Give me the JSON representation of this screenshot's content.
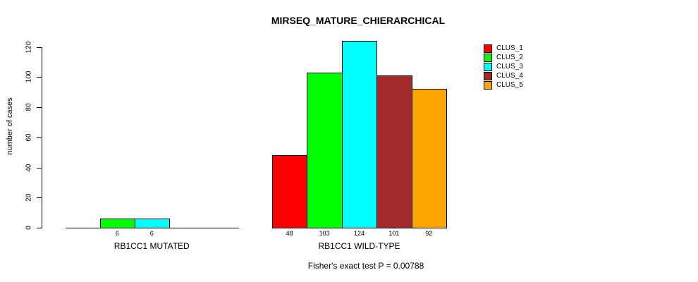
{
  "chart_data": {
    "type": "bar",
    "title": "MIRSEQ_MATURE_CHIERARCHICAL",
    "ylabel": "number of cases",
    "xlabel": "",
    "sub": "Fisher's exact test P = 0.00788",
    "ylim": [
      0,
      120
    ],
    "yticks": [
      0,
      20,
      40,
      60,
      80,
      100,
      120
    ],
    "grid": false,
    "clusters": [
      "CLUS_1",
      "CLUS_2",
      "CLUS_3",
      "CLUS_4",
      "CLUS_5"
    ],
    "colors": [
      "#FF0000",
      "#00FF00",
      "#00FFFF",
      "#A52A2A",
      "#FFA500"
    ],
    "groups": [
      {
        "label": "RB1CC1 MUTATED",
        "values": [
          0,
          6,
          6,
          0,
          0
        ],
        "bar_labels": [
          "",
          "6",
          "6",
          "",
          ""
        ]
      },
      {
        "label": "RB1CC1 WILD-TYPE",
        "values": [
          48,
          103,
          124,
          101,
          92
        ],
        "bar_labels": [
          "48",
          "103",
          "124",
          "101",
          "92"
        ]
      }
    ],
    "legend": {
      "position": "top-right",
      "entries": [
        "CLUS_1",
        "CLUS_2",
        "CLUS_3",
        "CLUS_4",
        "CLUS_5"
      ]
    }
  }
}
